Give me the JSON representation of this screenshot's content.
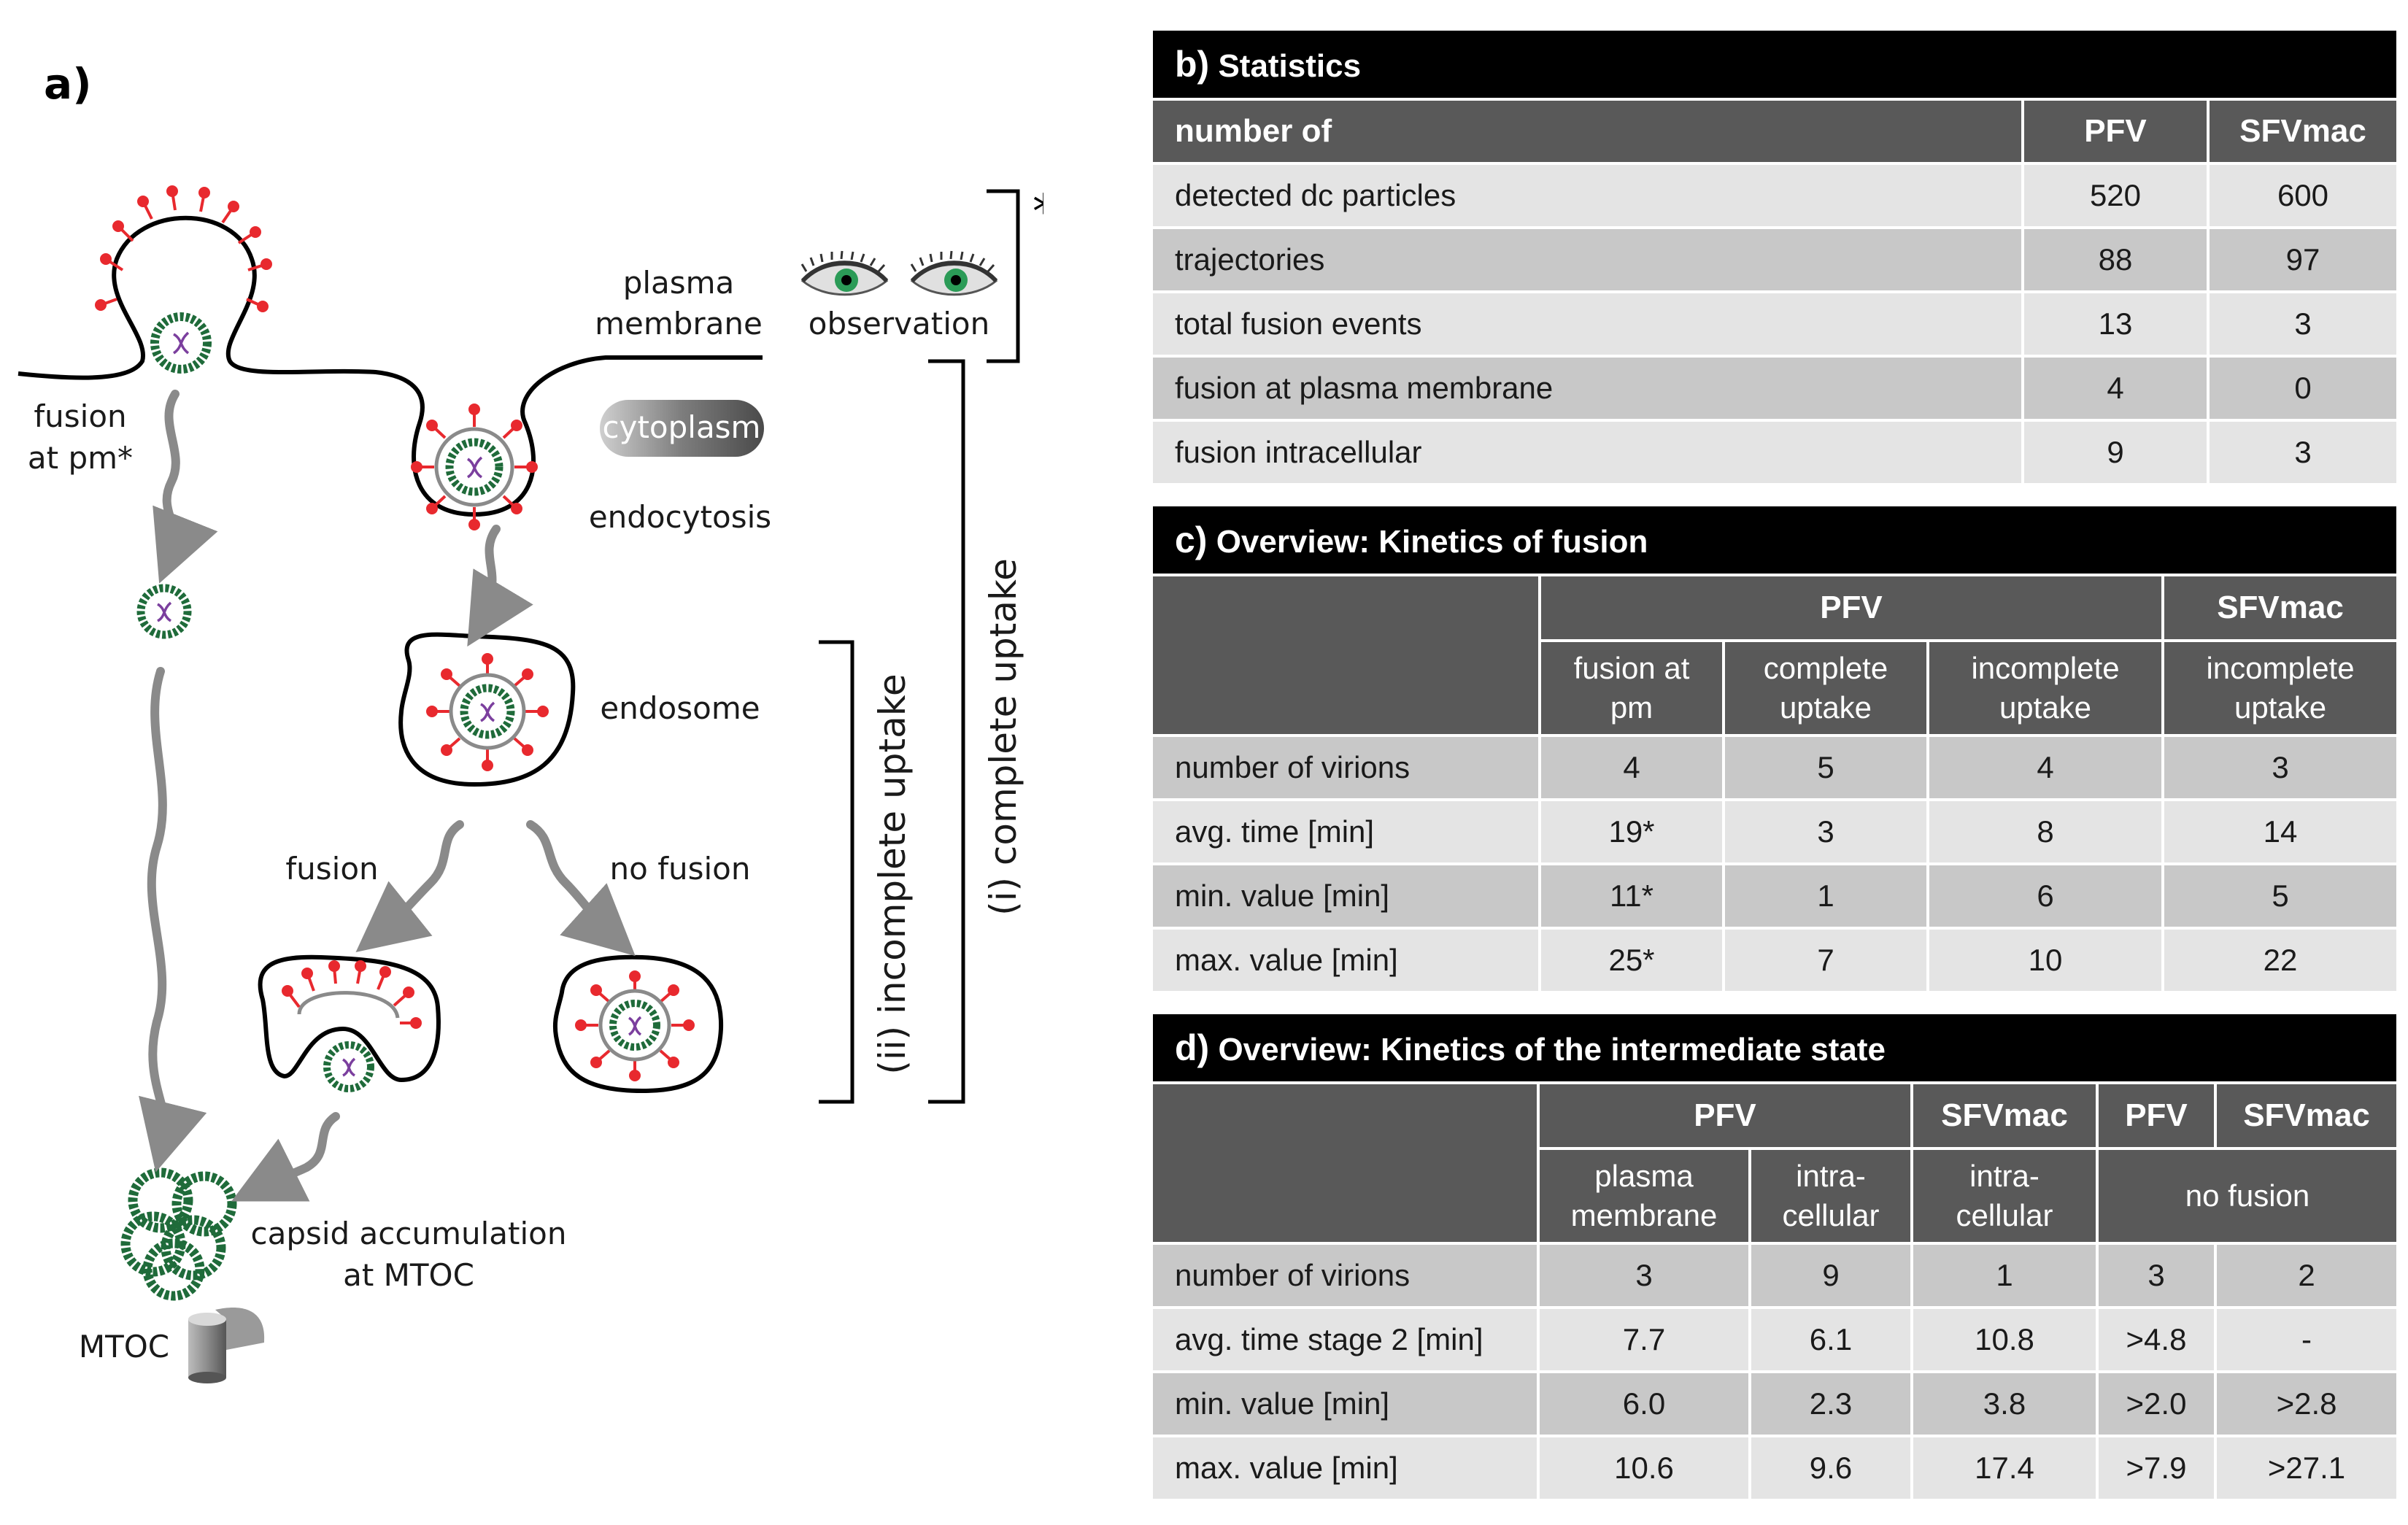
{
  "diagram": {
    "panel_label": "a)",
    "labels": {
      "plasma_membrane_1": "plasma",
      "plasma_membrane_2": "membrane",
      "observation": "observation",
      "asterisk": "*",
      "fusion_pm_1": "fusion",
      "fusion_pm_2": "at pm*",
      "cytoplasm": "cytoplasm",
      "endocytosis": "endocytosis",
      "endosome": "endosome",
      "fusion": "fusion",
      "no_fusion": "no fusion",
      "complete_uptake": "(i) complete uptake",
      "incomplete_uptake": "(ii) incomplete uptake",
      "capsid_1": "capsid accumulation",
      "capsid_2": "at MTOC",
      "mtoc": "MTOC"
    },
    "colors": {
      "spike": "#e8292e",
      "capsid": "#1f6b3a",
      "genome": "#7b3f9e",
      "arrow": "#8a8a8a",
      "membrane": "#000000"
    }
  },
  "table_b": {
    "panel": "b)",
    "title": "Statistics",
    "headers": [
      "number of",
      "PFV",
      "SFVmac"
    ],
    "rows": [
      [
        "detected dc particles",
        "520",
        "600"
      ],
      [
        "trajectories",
        "88",
        "97"
      ],
      [
        "total  fusion events",
        "13",
        "3"
      ],
      [
        "fusion at plasma membrane",
        "4",
        "0"
      ],
      [
        "fusion intracellular",
        "9",
        "3"
      ]
    ]
  },
  "table_c": {
    "panel": "c)",
    "title": "Overview: Kinetics of fusion",
    "group_headers": [
      "PFV",
      "SFVmac"
    ],
    "sub_headers": [
      [
        "fusion at",
        "pm"
      ],
      [
        "complete",
        "uptake"
      ],
      [
        "incomplete",
        "uptake"
      ],
      [
        "incomplete",
        "uptake"
      ]
    ],
    "rows": [
      [
        "number of virions",
        "4",
        "5",
        "4",
        "3"
      ],
      [
        "avg. time [min]",
        "19*",
        "3",
        "8",
        "14"
      ],
      [
        "min. value [min]",
        "11*",
        "1",
        "6",
        "5"
      ],
      [
        "max. value [min]",
        "25*",
        "7",
        "10",
        "22"
      ]
    ]
  },
  "table_d": {
    "panel": "d)",
    "title": "Overview: Kinetics of the intermediate state",
    "group_headers": [
      "PFV",
      "SFVmac",
      "PFV",
      "SFVmac"
    ],
    "sub_headers": [
      [
        "plasma",
        "membrane"
      ],
      [
        "intra-",
        "cellular"
      ],
      [
        "intra-",
        "cellular"
      ]
    ],
    "no_fusion": "no fusion",
    "rows": [
      [
        "number of virions",
        "3",
        "9",
        "1",
        "3",
        "2"
      ],
      [
        "avg. time stage 2 [min]",
        "7.7",
        "6.1",
        "10.8",
        ">4.8",
        "-"
      ],
      [
        "min. value [min]",
        "6.0",
        "2.3",
        "3.8",
        ">2.0",
        ">2.8"
      ],
      [
        "max. value [min]",
        "10.6",
        "9.6",
        "17.4",
        ">7.9",
        ">27.1"
      ]
    ]
  }
}
